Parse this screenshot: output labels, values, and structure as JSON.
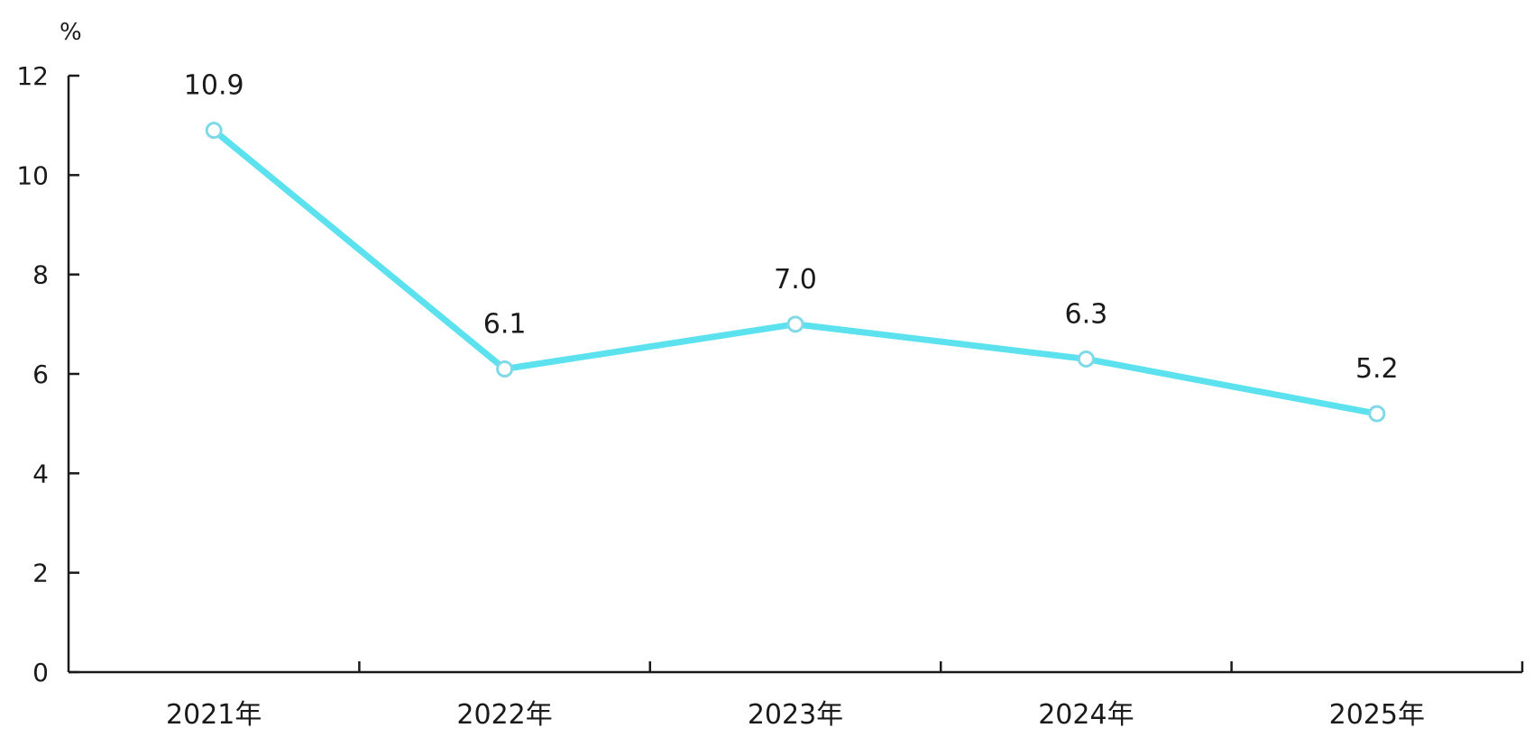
{
  "chart_data": {
    "type": "line",
    "unit": "%",
    "categories": [
      "2021年",
      "2022年",
      "2023年",
      "2024年",
      "2025年"
    ],
    "series": [
      {
        "values": [
          10.9,
          6.1,
          7.0,
          6.3,
          5.2
        ],
        "labels": [
          "10.9",
          "6.1",
          "7.0",
          "6.3",
          "5.2"
        ]
      }
    ],
    "y_ticks": [
      "0",
      "2",
      "4",
      "6",
      "8",
      "10",
      "12"
    ],
    "ylim": [
      0,
      12
    ],
    "grid": false,
    "legend": "none",
    "colors": {
      "line": "#5ce1ee",
      "marker_stroke": "#7fd9e6",
      "axis": "#1a1a1a"
    }
  }
}
